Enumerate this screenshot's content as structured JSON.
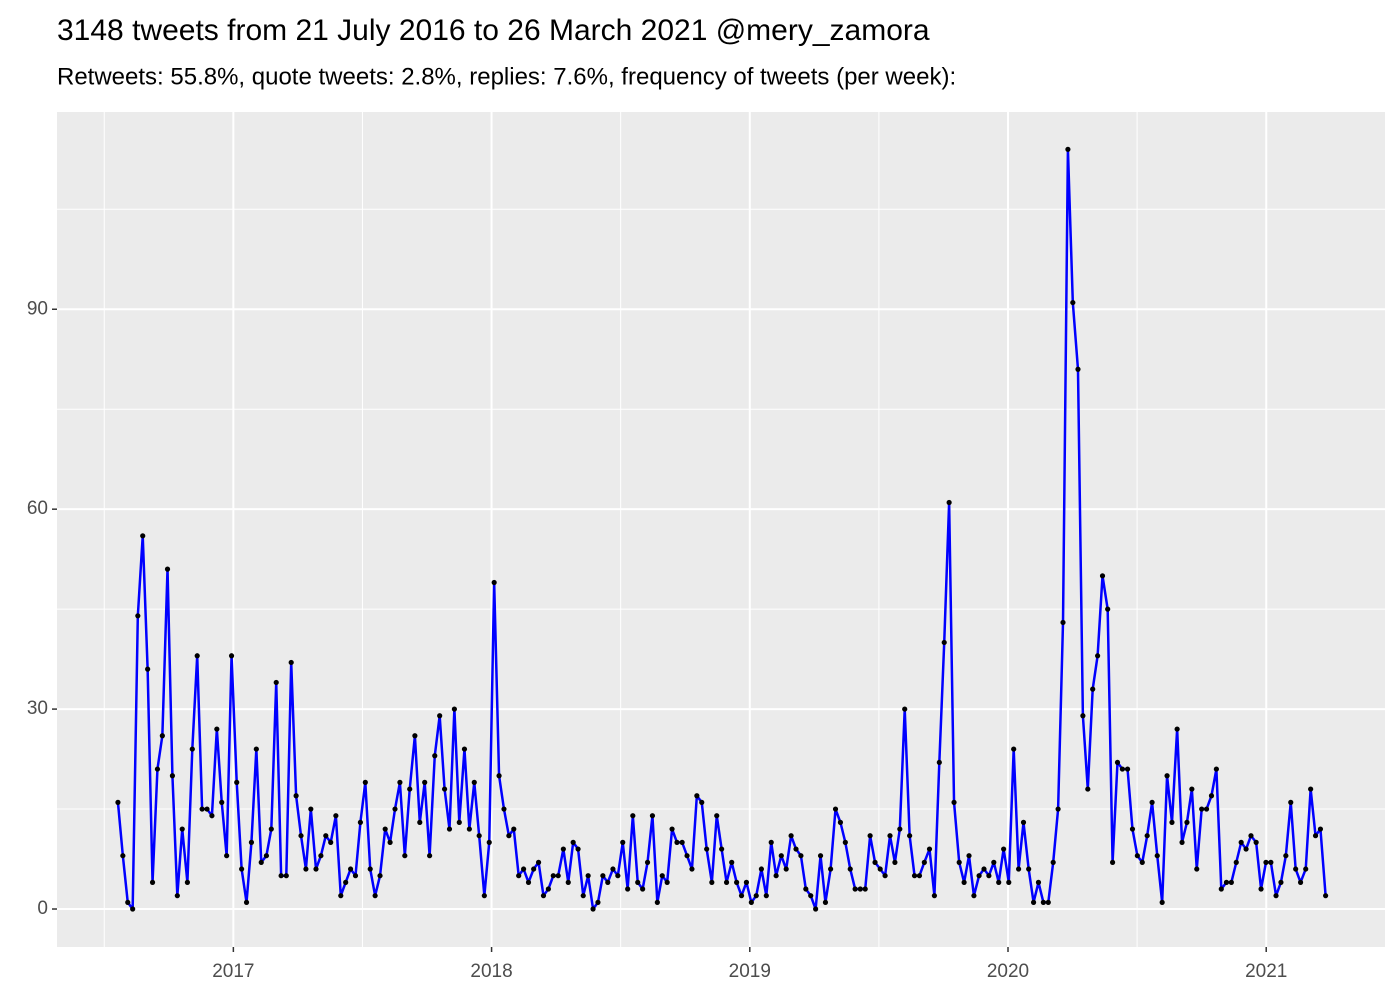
{
  "chart_data": {
    "type": "line",
    "title": "3148 tweets from 21 July 2016 to 26 March 2021 @mery_zamora",
    "subtitle": "Retweets: 55.8%, quote tweets: 2.8%, replies: 7.6%, frequency of tweets (per week):",
    "x": [
      2016.553,
      2016.572,
      2016.591,
      2016.61,
      2016.63,
      2016.649,
      2016.668,
      2016.687,
      2016.706,
      2016.725,
      2016.745,
      2016.764,
      2016.783,
      2016.802,
      2016.822,
      2016.841,
      2016.86,
      2016.879,
      2016.898,
      2016.917,
      2016.936,
      2016.955,
      2016.974,
      2016.993,
      2017.013,
      2017.032,
      2017.051,
      2017.07,
      2017.089,
      2017.108,
      2017.128,
      2017.147,
      2017.166,
      2017.185,
      2017.205,
      2017.224,
      2017.243,
      2017.262,
      2017.281,
      2017.3,
      2017.32,
      2017.339,
      2017.358,
      2017.377,
      2017.397,
      2017.416,
      2017.435,
      2017.454,
      2017.473,
      2017.492,
      2017.511,
      2017.53,
      2017.549,
      2017.568,
      2017.588,
      2017.607,
      2017.626,
      2017.645,
      2017.664,
      2017.683,
      2017.703,
      2017.722,
      2017.741,
      2017.76,
      2017.78,
      2017.799,
      2017.818,
      2017.837,
      2017.856,
      2017.875,
      2017.895,
      2017.914,
      2017.933,
      2017.952,
      2017.972,
      2017.991,
      2018.01,
      2018.029,
      2018.048,
      2018.067,
      2018.086,
      2018.105,
      2018.124,
      2018.143,
      2018.163,
      2018.182,
      2018.201,
      2018.22,
      2018.239,
      2018.258,
      2018.278,
      2018.297,
      2018.316,
      2018.335,
      2018.355,
      2018.374,
      2018.393,
      2018.412,
      2018.431,
      2018.45,
      2018.47,
      2018.489,
      2018.508,
      2018.527,
      2018.547,
      2018.566,
      2018.585,
      2018.604,
      2018.623,
      2018.642,
      2018.661,
      2018.68,
      2018.699,
      2018.718,
      2018.738,
      2018.757,
      2018.776,
      2018.795,
      2018.814,
      2018.833,
      2018.853,
      2018.872,
      2018.891,
      2018.91,
      2018.93,
      2018.949,
      2018.968,
      2018.987,
      2019.006,
      2019.025,
      2019.045,
      2019.064,
      2019.083,
      2019.102,
      2019.122,
      2019.141,
      2019.16,
      2019.179,
      2019.198,
      2019.217,
      2019.236,
      2019.255,
      2019.274,
      2019.293,
      2019.313,
      2019.332,
      2019.351,
      2019.37,
      2019.389,
      2019.408,
      2019.428,
      2019.447,
      2019.466,
      2019.485,
      2019.505,
      2019.524,
      2019.543,
      2019.562,
      2019.581,
      2019.6,
      2019.619,
      2019.638,
      2019.657,
      2019.676,
      2019.696,
      2019.715,
      2019.734,
      2019.753,
      2019.772,
      2019.791,
      2019.811,
      2019.83,
      2019.849,
      2019.868,
      2019.888,
      2019.907,
      2019.926,
      2019.945,
      2019.964,
      2019.983,
      2020.003,
      2020.022,
      2020.041,
      2020.06,
      2020.08,
      2020.099,
      2020.118,
      2020.137,
      2020.156,
      2020.175,
      2020.194,
      2020.213,
      2020.232,
      2020.251,
      2020.271,
      2020.29,
      2020.309,
      2020.328,
      2020.347,
      2020.366,
      2020.386,
      2020.405,
      2020.424,
      2020.443,
      2020.463,
      2020.482,
      2020.501,
      2020.52,
      2020.539,
      2020.558,
      2020.578,
      2020.597,
      2020.616,
      2020.635,
      2020.655,
      2020.674,
      2020.693,
      2020.712,
      2020.731,
      2020.75,
      2020.769,
      2020.788,
      2020.807,
      2020.826,
      2020.846,
      2020.865,
      2020.884,
      2020.903,
      2020.922,
      2020.941,
      2020.961,
      2020.98,
      2020.999,
      2021.018,
      2021.038,
      2021.057,
      2021.076,
      2021.095,
      2021.114,
      2021.133,
      2021.153,
      2021.172,
      2021.191,
      2021.21,
      2021.23
    ],
    "values": [
      16,
      8,
      1,
      0,
      44,
      56,
      36,
      4,
      21,
      26,
      51,
      20,
      2,
      12,
      4,
      24,
      38,
      15,
      15,
      14,
      27,
      16,
      8,
      38,
      19,
      6,
      1,
      10,
      24,
      7,
      8,
      12,
      34,
      5,
      5,
      37,
      17,
      11,
      6,
      15,
      6,
      8,
      11,
      10,
      14,
      2,
      4,
      6,
      5,
      13,
      19,
      6,
      2,
      5,
      12,
      10,
      15,
      19,
      8,
      18,
      26,
      13,
      19,
      8,
      23,
      29,
      18,
      12,
      30,
      13,
      24,
      12,
      19,
      11,
      2,
      10,
      49,
      20,
      15,
      11,
      12,
      5,
      6,
      4,
      6,
      7,
      2,
      3,
      5,
      5,
      9,
      4,
      10,
      9,
      2,
      5,
      0,
      1,
      5,
      4,
      6,
      5,
      10,
      3,
      14,
      4,
      3,
      7,
      14,
      1,
      5,
      4,
      12,
      10,
      10,
      8,
      6,
      17,
      16,
      9,
      4,
      14,
      9,
      4,
      7,
      4,
      2,
      4,
      1,
      2,
      6,
      2,
      10,
      5,
      8,
      6,
      11,
      9,
      8,
      3,
      2,
      0,
      8,
      1,
      6,
      15,
      13,
      10,
      6,
      3,
      3,
      3,
      11,
      7,
      6,
      5,
      11,
      7,
      12,
      30,
      11,
      5,
      5,
      7,
      9,
      2,
      22,
      40,
      61,
      16,
      7,
      4,
      8,
      2,
      5,
      6,
      5,
      7,
      4,
      9,
      4,
      24,
      6,
      13,
      6,
      1,
      4,
      1,
      1,
      7,
      15,
      43,
      114,
      91,
      81,
      29,
      18,
      33,
      38,
      50,
      45,
      7,
      22,
      21,
      21,
      12,
      8,
      7,
      11,
      16,
      8,
      1,
      20,
      13,
      27,
      10,
      13,
      18,
      6,
      15,
      15,
      17,
      21,
      3,
      4,
      4,
      7,
      10,
      9,
      11,
      10,
      3,
      7,
      7,
      2,
      4,
      8,
      16,
      6,
      4,
      6,
      18,
      11,
      12,
      2
    ],
    "color": "#0000ff",
    "marker_color": "#000000",
    "xlim": [
      2016.317,
      2021.46
    ],
    "ylim": [
      -5.7,
      119.6
    ],
    "xticks": [
      2017,
      2018,
      2019,
      2020,
      2021
    ],
    "yticks": [
      0,
      30,
      60,
      90
    ],
    "x_minor_grid": [
      2016.5,
      2017.5,
      2018.5,
      2019.5,
      2020.5
    ],
    "y_minor_grid": [
      15,
      45,
      75,
      105
    ],
    "grid": true
  }
}
